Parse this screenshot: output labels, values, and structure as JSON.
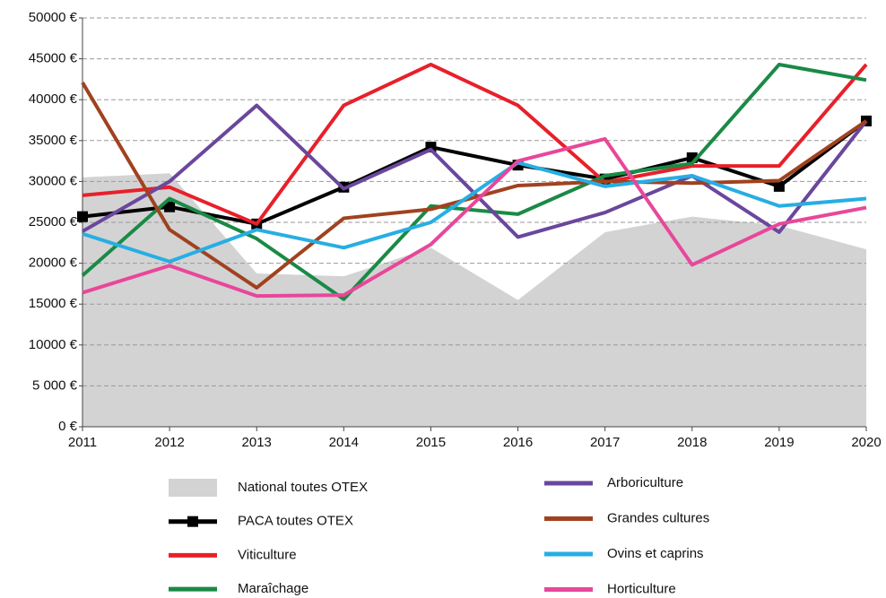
{
  "chart_data": {
    "type": "line",
    "x": [
      2011,
      2012,
      2013,
      2014,
      2015,
      2016,
      2017,
      2018,
      2019,
      2020
    ],
    "xlim": [
      2011,
      2020
    ],
    "xticks": [
      2011,
      2012,
      2013,
      2014,
      2015,
      2016,
      2017,
      2018,
      2019,
      2020
    ],
    "ylim": [
      0,
      50000
    ],
    "yticks": [
      {
        "value": 0,
        "label": "0 €"
      },
      {
        "value": 5000,
        "label": "5 000 €"
      },
      {
        "value": 10000,
        "label": "10000 €"
      },
      {
        "value": 15000,
        "label": "15000 €"
      },
      {
        "value": 20000,
        "label": "20000 €"
      },
      {
        "value": 25000,
        "label": "25000 €"
      },
      {
        "value": 30000,
        "label": "30000 €"
      },
      {
        "value": 35000,
        "label": "35000 €"
      },
      {
        "value": 40000,
        "label": "40000 €"
      },
      {
        "value": 45000,
        "label": "45000 €"
      },
      {
        "value": 50000,
        "label": "50000 €"
      }
    ],
    "grid": true,
    "series": [
      {
        "name": "National toutes OTEX",
        "type": "area",
        "color": "#d3d3d4",
        "values": [
          30500,
          31000,
          18750,
          18400,
          21900,
          15500,
          23800,
          25700,
          24600,
          21700
        ]
      },
      {
        "name": "PACA toutes OTEX",
        "color": "#000000",
        "marker": "square",
        "values": [
          25700,
          26900,
          24800,
          29300,
          34200,
          32000,
          30300,
          32900,
          29400,
          37400
        ]
      },
      {
        "name": "Viticulture",
        "color": "#e8202a",
        "values": [
          28300,
          29300,
          24800,
          39300,
          44300,
          39300,
          29900,
          31900,
          31900,
          44300
        ]
      },
      {
        "name": "Maraîchage",
        "color": "#1a8a45",
        "values": [
          18500,
          27900,
          23000,
          15600,
          27000,
          26000,
          30700,
          32200,
          44300,
          42400
        ]
      },
      {
        "name": "Arboriculture",
        "color": "#6a479c",
        "values": [
          23900,
          30000,
          39300,
          29100,
          33900,
          23200,
          26200,
          30700,
          23800,
          37400
        ]
      },
      {
        "name": "Grandes cultures",
        "color": "#a0421f",
        "values": [
          42100,
          24100,
          17000,
          25500,
          26600,
          29500,
          30000,
          29800,
          30100,
          37400
        ]
      },
      {
        "name": "Ovins et caprins",
        "color": "#27aee3",
        "values": [
          23600,
          20200,
          24100,
          21900,
          25000,
          32300,
          29400,
          30700,
          27000,
          27900
        ]
      },
      {
        "name": "Horticulture",
        "color": "#e8479a",
        "values": [
          16400,
          19700,
          16000,
          16100,
          22300,
          32500,
          35200,
          19800,
          24800,
          26800
        ]
      }
    ]
  }
}
